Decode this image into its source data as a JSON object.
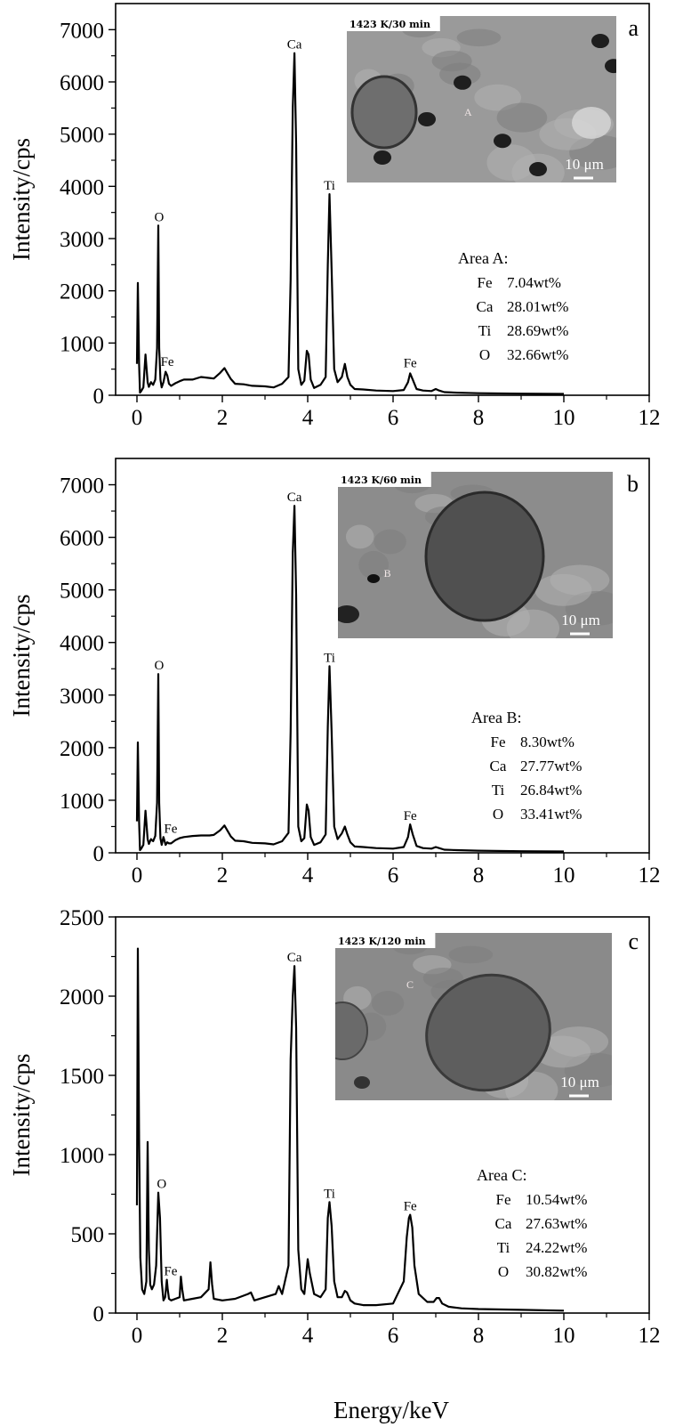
{
  "x_axis_title": "Energy/keV",
  "chart_data": [
    {
      "type": "line",
      "panel": "a",
      "xlabel": "",
      "ylabel": "Intensity/cps",
      "xlim": [
        -0.5,
        12
      ],
      "ylim": [
        0,
        7500
      ],
      "x_ticks": [
        0,
        2,
        4,
        6,
        8,
        10,
        12
      ],
      "y_ticks": [
        0,
        1000,
        2000,
        3000,
        4000,
        5000,
        6000,
        7000
      ],
      "grid": false,
      "inset": {
        "condition": "1423 K/30 min",
        "area_marker": "A",
        "scale_bar": "10 μm"
      },
      "peak_labels": [
        {
          "text": "O",
          "x": 0.52,
          "y": 3250
        },
        {
          "text": "Fe",
          "x": 0.71,
          "y": 480
        },
        {
          "text": "Ca",
          "x": 3.69,
          "y": 6550
        },
        {
          "text": "Ti",
          "x": 4.51,
          "y": 3850
        },
        {
          "text": "Fe",
          "x": 6.4,
          "y": 450
        }
      ],
      "composition": {
        "title": "Area A:",
        "rows": [
          {
            "element": "Fe",
            "value": "7.04wt%"
          },
          {
            "element": "Ca",
            "value": "28.01wt%"
          },
          {
            "element": "Ti",
            "value": "28.69wt%"
          },
          {
            "element": "O",
            "value": "32.66wt%"
          }
        ]
      },
      "series": [
        {
          "x": [
            0.0,
            0.02,
            0.05,
            0.07,
            0.1,
            0.15,
            0.2,
            0.25,
            0.28,
            0.33,
            0.38,
            0.43,
            0.47,
            0.5,
            0.52,
            0.55,
            0.58,
            0.62,
            0.67,
            0.71,
            0.75,
            0.8,
            0.9,
            1.0,
            1.1,
            1.3,
            1.5,
            1.7,
            1.8,
            1.95,
            2.05,
            2.12,
            2.2,
            2.3,
            2.5,
            2.7,
            3.0,
            3.2,
            3.4,
            3.55,
            3.6,
            3.65,
            3.69,
            3.73,
            3.78,
            3.85,
            3.92,
            3.98,
            4.02,
            4.07,
            4.15,
            4.3,
            4.42,
            4.47,
            4.51,
            4.56,
            4.62,
            4.7,
            4.8,
            4.87,
            4.93,
            5.0,
            5.1,
            5.3,
            5.6,
            6.0,
            6.25,
            6.35,
            6.4,
            6.46,
            6.55,
            6.7,
            6.9,
            7.0,
            7.08,
            7.2,
            7.5,
            8.0,
            9.0,
            10.0
          ],
          "y": [
            600,
            2150,
            600,
            50,
            80,
            150,
            780,
            250,
            160,
            250,
            200,
            300,
            900,
            3250,
            900,
            300,
            150,
            250,
            450,
            380,
            220,
            180,
            230,
            270,
            300,
            300,
            350,
            330,
            320,
            430,
            520,
            420,
            310,
            220,
            210,
            180,
            170,
            150,
            220,
            350,
            2200,
            5500,
            6550,
            4800,
            500,
            200,
            280,
            850,
            780,
            300,
            140,
            200,
            350,
            2500,
            3850,
            2400,
            500,
            250,
            350,
            600,
            350,
            200,
            120,
            110,
            90,
            80,
            100,
            250,
            420,
            300,
            120,
            90,
            80,
            120,
            90,
            60,
            50,
            40,
            30,
            25
          ]
        }
      ]
    },
    {
      "type": "line",
      "panel": "b",
      "xlabel": "",
      "ylabel": "Intensity/cps",
      "xlim": [
        -0.5,
        12
      ],
      "ylim": [
        0,
        7500
      ],
      "x_ticks": [
        0,
        2,
        4,
        6,
        8,
        10,
        12
      ],
      "y_ticks": [
        0,
        1000,
        2000,
        3000,
        4000,
        5000,
        6000,
        7000
      ],
      "grid": false,
      "inset": {
        "condition": "1423 K/60 min",
        "area_marker": "B",
        "scale_bar": "10 μm"
      },
      "peak_labels": [
        {
          "text": "O",
          "x": 0.52,
          "y": 3400
        },
        {
          "text": "Fe",
          "x": 0.79,
          "y": 300
        },
        {
          "text": "Ca",
          "x": 3.69,
          "y": 6600
        },
        {
          "text": "Ti",
          "x": 4.51,
          "y": 3550
        },
        {
          "text": "Fe",
          "x": 6.4,
          "y": 540
        }
      ],
      "composition": {
        "title": "Area B:",
        "rows": [
          {
            "element": "Fe",
            "value": "8.30wt%"
          },
          {
            "element": "Ca",
            "value": "27.77wt%"
          },
          {
            "element": "Ti",
            "value": "26.84wt%"
          },
          {
            "element": "O",
            "value": "33.41wt%"
          }
        ]
      },
      "series": [
        {
          "x": [
            0.0,
            0.02,
            0.05,
            0.07,
            0.1,
            0.15,
            0.2,
            0.25,
            0.28,
            0.33,
            0.38,
            0.43,
            0.47,
            0.5,
            0.52,
            0.55,
            0.58,
            0.62,
            0.67,
            0.71,
            0.75,
            0.8,
            0.9,
            1.0,
            1.1,
            1.3,
            1.5,
            1.7,
            1.8,
            1.95,
            2.05,
            2.12,
            2.2,
            2.3,
            2.5,
            2.7,
            3.0,
            3.2,
            3.4,
            3.55,
            3.6,
            3.65,
            3.69,
            3.73,
            3.78,
            3.85,
            3.92,
            3.98,
            4.02,
            4.07,
            4.15,
            4.3,
            4.42,
            4.47,
            4.51,
            4.56,
            4.62,
            4.7,
            4.8,
            4.87,
            4.93,
            5.0,
            5.1,
            5.3,
            5.6,
            6.0,
            6.25,
            6.35,
            6.4,
            6.46,
            6.55,
            6.7,
            6.9,
            7.0,
            7.08,
            7.2,
            7.5,
            8.0,
            9.0,
            10.0
          ],
          "y": [
            600,
            2100,
            600,
            50,
            80,
            150,
            800,
            260,
            170,
            260,
            220,
            320,
            950,
            3400,
            950,
            280,
            150,
            300,
            150,
            200,
            180,
            180,
            240,
            280,
            300,
            320,
            330,
            330,
            340,
            430,
            520,
            420,
            310,
            230,
            220,
            190,
            180,
            160,
            220,
            380,
            2300,
            5700,
            6600,
            4900,
            500,
            220,
            280,
            920,
            800,
            300,
            150,
            200,
            350,
            2400,
            3550,
            2300,
            500,
            260,
            370,
            500,
            350,
            200,
            120,
            110,
            90,
            80,
            110,
            300,
            540,
            350,
            130,
            90,
            80,
            110,
            90,
            60,
            50,
            40,
            30,
            25
          ]
        }
      ]
    },
    {
      "type": "line",
      "panel": "c",
      "xlabel": "Energy/keV",
      "ylabel": "Intensity/cps",
      "xlim": [
        -0.5,
        12
      ],
      "ylim": [
        0,
        2500
      ],
      "x_ticks": [
        0,
        2,
        4,
        6,
        8,
        10,
        12
      ],
      "y_ticks": [
        0,
        500,
        1000,
        1500,
        2000,
        2500
      ],
      "grid": false,
      "inset": {
        "condition": "1423 K/120 min",
        "area_marker": "C",
        "scale_bar": "10 μm"
      },
      "peak_labels": [
        {
          "text": "O",
          "x": 0.58,
          "y": 760
        },
        {
          "text": "Fe",
          "x": 0.79,
          "y": 210
        },
        {
          "text": "Ca",
          "x": 3.69,
          "y": 2190
        },
        {
          "text": "Ti",
          "x": 4.51,
          "y": 700
        },
        {
          "text": "Fe",
          "x": 6.4,
          "y": 620
        }
      ],
      "composition": {
        "title": "Area C:",
        "rows": [
          {
            "element": "Fe",
            "value": "10.54wt%"
          },
          {
            "element": "Ca",
            "value": "27.63wt%"
          },
          {
            "element": "Ti",
            "value": "24.22wt%"
          },
          {
            "element": "O",
            "value": "30.82wt%"
          }
        ]
      },
      "series": [
        {
          "x": [
            0.0,
            0.02,
            0.05,
            0.08,
            0.12,
            0.17,
            0.22,
            0.25,
            0.28,
            0.31,
            0.35,
            0.4,
            0.45,
            0.5,
            0.54,
            0.58,
            0.62,
            0.66,
            0.7,
            0.72,
            0.75,
            0.8,
            0.9,
            1.0,
            1.03,
            1.06,
            1.1,
            1.3,
            1.5,
            1.68,
            1.72,
            1.76,
            1.8,
            2.0,
            2.3,
            2.6,
            2.67,
            2.75,
            3.0,
            3.25,
            3.32,
            3.4,
            3.55,
            3.6,
            3.65,
            3.69,
            3.73,
            3.78,
            3.85,
            3.92,
            3.97,
            4.0,
            4.05,
            4.15,
            4.3,
            4.42,
            4.47,
            4.51,
            4.56,
            4.62,
            4.7,
            4.8,
            4.87,
            4.92,
            5.0,
            5.1,
            5.3,
            5.6,
            6.0,
            6.25,
            6.32,
            6.37,
            6.4,
            6.45,
            6.5,
            6.6,
            6.8,
            6.95,
            7.02,
            7.08,
            7.15,
            7.3,
            7.6,
            8.0,
            9.0,
            10.0
          ],
          "y": [
            680,
            2300,
            1100,
            350,
            150,
            120,
            200,
            1080,
            400,
            180,
            150,
            180,
            300,
            760,
            600,
            200,
            80,
            100,
            210,
            150,
            90,
            80,
            90,
            100,
            230,
            150,
            80,
            90,
            100,
            150,
            320,
            180,
            90,
            80,
            90,
            120,
            130,
            80,
            100,
            120,
            170,
            120,
            300,
            1600,
            2000,
            2190,
            1800,
            400,
            150,
            120,
            260,
            340,
            250,
            120,
            100,
            150,
            600,
            700,
            550,
            200,
            100,
            100,
            140,
            130,
            80,
            60,
            50,
            50,
            60,
            200,
            480,
            600,
            620,
            540,
            300,
            120,
            70,
            70,
            95,
            95,
            60,
            40,
            30,
            25,
            20,
            15
          ]
        }
      ]
    }
  ]
}
